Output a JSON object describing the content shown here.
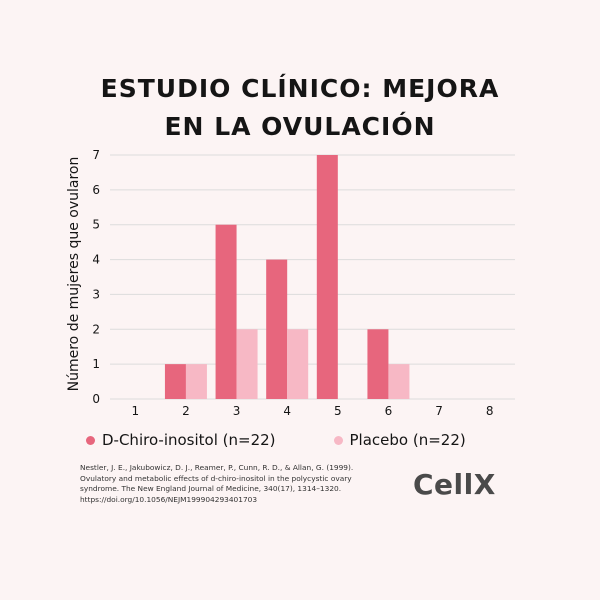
{
  "title_lines": [
    "ESTUDIO CLÍNICO: MEJORA",
    "EN LA OVULACIÓN"
  ],
  "colors": {
    "series1": "#e7667d",
    "series2": "#f7b8c5",
    "grid": "#dcdcdc",
    "text": "#151515",
    "background": "#fcf4f4"
  },
  "chart_data": {
    "type": "bar",
    "categories": [
      "1",
      "2",
      "3",
      "4",
      "5",
      "6",
      "7",
      "8"
    ],
    "series": [
      {
        "name": "D-Chiro-inositol (n=22)",
        "values": [
          0,
          1,
          5,
          4,
          7,
          2,
          0,
          0
        ]
      },
      {
        "name": "Placebo (n=22)",
        "values": [
          0,
          1,
          2,
          2,
          0,
          1,
          0,
          0
        ]
      }
    ],
    "title": "ESTUDIO CLÍNICO: MEJORA EN LA OVULACIÓN",
    "xlabel": "",
    "ylabel": "Número de mujeres que ovularon",
    "ylim": [
      0,
      7
    ],
    "yticks": [
      0,
      1,
      2,
      3,
      4,
      5,
      6,
      7
    ],
    "grid": true,
    "legend": "bottom"
  },
  "citation": "Nestler, J. E., Jakubowicz, D. J., Reamer, P., Cunn, R. D., & Allan, G. (1999). Ovulatory and metabolic effects of d-chiro-inositol in the polycystic ovary syndrome. The New England Journal of Medicine, 340(17), 1314–1320. https://doi.org/10.1056/NEJM199904293401703",
  "brand": "CellX"
}
